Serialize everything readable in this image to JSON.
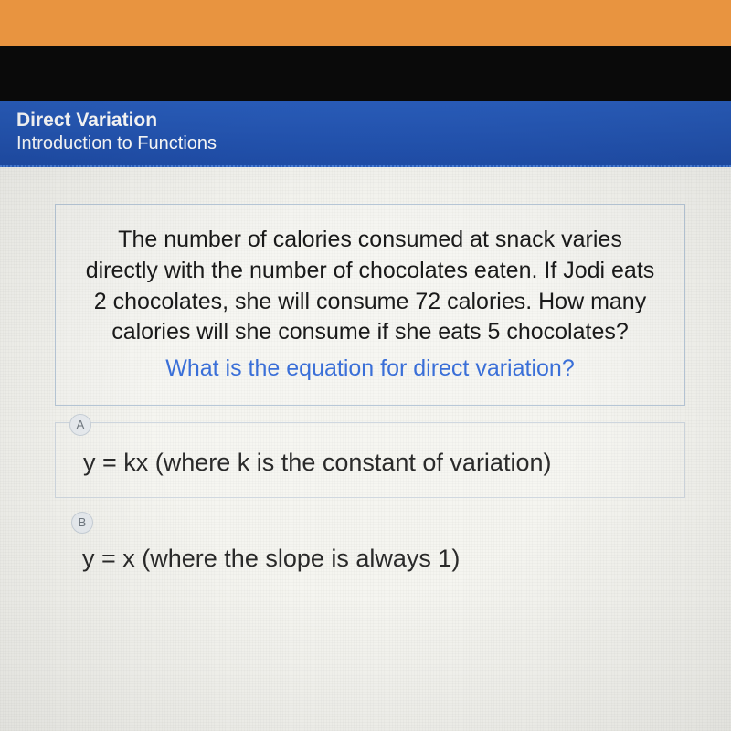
{
  "header": {
    "title": "Direct Variation",
    "subtitle": "Introduction to Functions",
    "bg_color": "#2455b8",
    "text_color": "#ffffff"
  },
  "question": {
    "body": "The number of calories consumed at snack varies directly with the number of chocolates eaten. If Jodi eats 2 chocolates, she will consume 72 calories. How many calories will she consume if she eats 5 chocolates?",
    "prompt": "What is the equation for direct variation?",
    "prompt_color": "#3a6fd8",
    "body_color": "#1a1a1a",
    "body_fontsize": 25,
    "border_color": "#b8c8d8"
  },
  "options": [
    {
      "letter": "A",
      "text": "y = kx (where k is the constant of variation)"
    },
    {
      "letter": "B",
      "text": "y = x (where the slope is always 1)"
    }
  ],
  "styling": {
    "page_bg": "#e89440",
    "screen_bg": "#f5f5f0",
    "option_border": "#d0d8e0",
    "option_text_color": "#2a2a2a",
    "option_fontsize": 27,
    "letter_bg": "#e8ecf0",
    "letter_color": "#707880"
  }
}
